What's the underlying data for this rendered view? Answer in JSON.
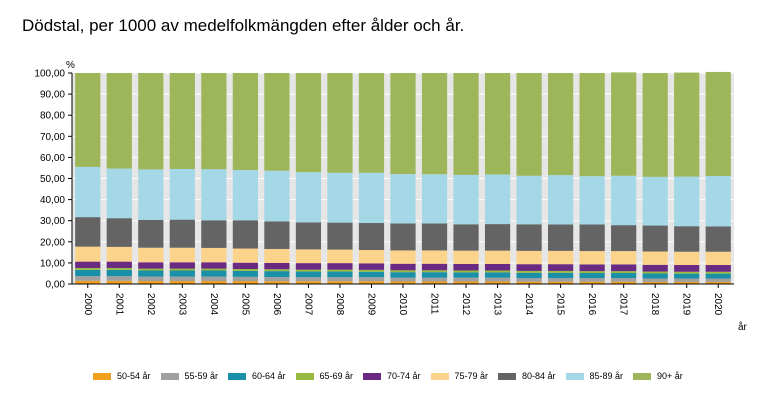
{
  "chart_data": {
    "type": "bar",
    "stacked": true,
    "title": "Dödstal, per 1000 av medelfolkmängden efter ålder och år.",
    "ylabel": "%",
    "xlabel": "år",
    "ylim": [
      0,
      100
    ],
    "yticks": [
      "0,00",
      "10,00",
      "20,00",
      "30,00",
      "40,00",
      "50,00",
      "60,00",
      "70,00",
      "80,00",
      "90,00",
      "100,00"
    ],
    "ytick_values": [
      0,
      10,
      20,
      30,
      40,
      50,
      60,
      70,
      80,
      90,
      100
    ],
    "grid": true,
    "legend_position": "bottom",
    "categories": [
      "2000",
      "2001",
      "2002",
      "2003",
      "2004",
      "2005",
      "2006",
      "2007",
      "2008",
      "2009",
      "2010",
      "2011",
      "2012",
      "2013",
      "2014",
      "2015",
      "2016",
      "2017",
      "2018",
      "2019",
      "2020"
    ],
    "series": [
      {
        "name": "50-54 år",
        "color": "#f0a01e",
        "values": [
          1.5,
          1.5,
          1.4,
          1.4,
          1.4,
          1.4,
          1.3,
          1.3,
          1.3,
          1.3,
          1.2,
          1.2,
          1.2,
          1.2,
          1.1,
          1.1,
          1.1,
          1.1,
          1.0,
          1.0,
          1.0
        ]
      },
      {
        "name": "55-59 år",
        "color": "#a0a0a0",
        "values": [
          2.2,
          2.2,
          2.1,
          2.1,
          2.1,
          2.0,
          2.0,
          1.9,
          1.9,
          1.9,
          1.8,
          1.8,
          1.8,
          1.8,
          1.7,
          1.7,
          1.7,
          1.7,
          1.6,
          1.6,
          1.6
        ]
      },
      {
        "name": "60-64 år",
        "color": "#1a8fa8",
        "values": [
          3.0,
          3.0,
          2.9,
          2.9,
          2.9,
          2.8,
          2.8,
          2.7,
          2.7,
          2.6,
          2.6,
          2.6,
          2.5,
          2.5,
          2.5,
          2.5,
          2.4,
          2.4,
          2.4,
          2.3,
          2.3
        ]
      },
      {
        "name": "65-69 år",
        "color": "#97b93f",
        "values": [
          0.9,
          0.9,
          0.9,
          0.9,
          0.9,
          0.9,
          0.9,
          0.9,
          0.9,
          0.9,
          0.9,
          0.9,
          0.9,
          0.9,
          0.9,
          0.9,
          0.9,
          0.9,
          0.9,
          0.9,
          0.9
        ]
      },
      {
        "name": "70-74 år",
        "color": "#6a2a82",
        "values": [
          3.0,
          3.0,
          3.0,
          3.0,
          3.0,
          3.0,
          3.0,
          3.1,
          3.1,
          3.1,
          3.1,
          3.1,
          3.1,
          3.1,
          3.2,
          3.2,
          3.2,
          3.2,
          3.2,
          3.2,
          3.2
        ]
      },
      {
        "name": "75-79 år",
        "color": "#fcd38b",
        "values": [
          7.1,
          7.0,
          6.9,
          6.9,
          6.8,
          6.7,
          6.6,
          6.5,
          6.4,
          6.3,
          6.3,
          6.3,
          6.3,
          6.3,
          6.3,
          6.3,
          6.3,
          6.3,
          6.3,
          6.3,
          6.3
        ]
      },
      {
        "name": "80-84 år",
        "color": "#646464",
        "values": [
          14.0,
          13.6,
          13.2,
          13.3,
          13.1,
          13.4,
          13.1,
          12.8,
          12.8,
          12.8,
          12.8,
          12.8,
          12.5,
          12.6,
          12.6,
          12.5,
          12.6,
          12.3,
          12.3,
          12.1,
          12.0
        ]
      },
      {
        "name": "85-89 år",
        "color": "#a4d8e6",
        "values": [
          23.8,
          23.5,
          23.9,
          24.0,
          24.2,
          23.8,
          24.0,
          23.8,
          23.6,
          23.8,
          23.4,
          23.3,
          23.4,
          23.5,
          23.0,
          23.4,
          22.9,
          23.4,
          23.1,
          23.5,
          23.9
        ]
      },
      {
        "name": "90+ år",
        "color": "#9db65a",
        "values": [
          44.5,
          45.3,
          45.7,
          45.5,
          45.6,
          46.0,
          46.3,
          47.0,
          47.3,
          47.3,
          47.9,
          48.0,
          48.3,
          48.1,
          48.7,
          48.4,
          48.9,
          49.0,
          49.2,
          49.3,
          49.3
        ]
      }
    ],
    "colors": {
      "plot_background": "#e6e6e6",
      "grid": "#ffffff",
      "axis": "#000000"
    }
  }
}
